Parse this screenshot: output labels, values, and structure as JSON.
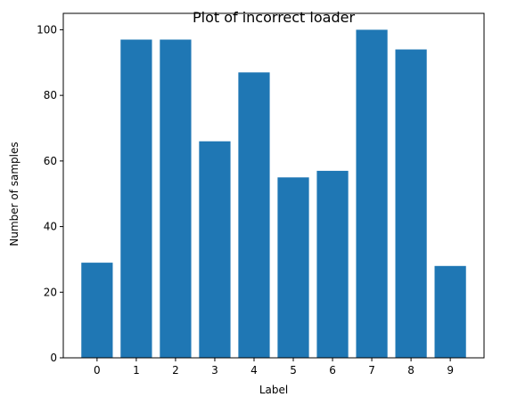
{
  "chart_data": {
    "type": "bar",
    "title": "Plot of incorrect loader",
    "xlabel": "Label",
    "ylabel": "Number of samples",
    "categories": [
      "0",
      "1",
      "2",
      "3",
      "4",
      "5",
      "6",
      "7",
      "8",
      "9"
    ],
    "values": [
      29,
      97,
      97,
      66,
      87,
      55,
      57,
      100,
      94,
      28
    ],
    "ylim": [
      0,
      105
    ],
    "yticks": [
      0,
      20,
      40,
      60,
      80,
      100
    ],
    "grid": false,
    "bar_color": "#1f77b4"
  }
}
